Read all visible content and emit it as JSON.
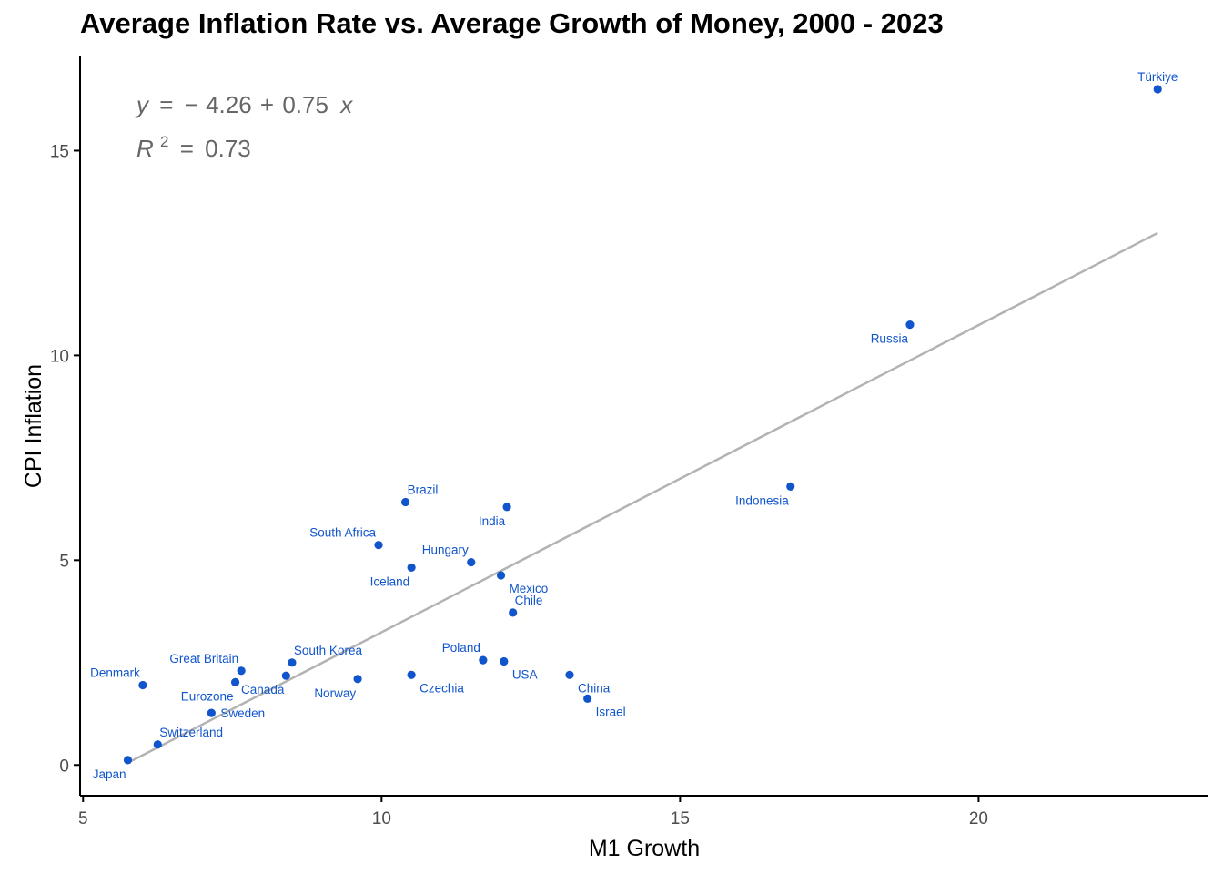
{
  "chart_data": {
    "type": "scatter",
    "title": "Average Inflation Rate vs. Average Growth of Money, 2000 - 2023",
    "xlabel": "M1 Growth",
    "ylabel": "CPI Inflation",
    "xlim": [
      4.95,
      23.85
    ],
    "ylim": [
      -0.75,
      17.3
    ],
    "xticks": [
      5,
      10,
      15,
      20
    ],
    "yticks": [
      0,
      5,
      10,
      15
    ],
    "grid": false,
    "colors": {
      "points": "#1155cc",
      "labels": "#1155cc",
      "fit_line": "#b3b3b3",
      "equation": "#666666"
    },
    "fit": {
      "intercept": -4.26,
      "slope": 0.75,
      "r_squared": 0.73,
      "x_range": [
        5.75,
        23.0
      ],
      "equation": {
        "y": "y",
        "eq": "=",
        "minus": "−",
        "intercept": "4.26",
        "plus": "+",
        "slope": "0.75",
        "x": "x",
        "r": "R",
        "sup": "2",
        "r2": "0.73"
      }
    },
    "points": [
      {
        "label": "Türkiye",
        "x": 23.0,
        "y": 16.5,
        "label_pos": "above"
      },
      {
        "label": "Russia",
        "x": 18.85,
        "y": 10.75,
        "label_pos": "below-left"
      },
      {
        "label": "Indonesia",
        "x": 16.85,
        "y": 6.8,
        "label_pos": "below-left"
      },
      {
        "label": "Brazil",
        "x": 10.4,
        "y": 6.42,
        "label_pos": "above-right"
      },
      {
        "label": "India",
        "x": 12.1,
        "y": 6.3,
        "label_pos": "below-left"
      },
      {
        "label": "South Africa",
        "x": 9.95,
        "y": 5.37,
        "label_pos": "above-left"
      },
      {
        "label": "Hungary",
        "x": 11.5,
        "y": 4.95,
        "label_pos": "above-left"
      },
      {
        "label": "Iceland",
        "x": 10.5,
        "y": 4.82,
        "label_pos": "below-left"
      },
      {
        "label": "Mexico",
        "x": 12.0,
        "y": 4.63,
        "label_pos": "below-right"
      },
      {
        "label": "Chile",
        "x": 12.2,
        "y": 3.72,
        "label_pos": "above-right"
      },
      {
        "label": "Poland",
        "x": 11.7,
        "y": 2.56,
        "label_pos": "above-left"
      },
      {
        "label": "USA",
        "x": 12.05,
        "y": 2.53,
        "label_pos": "below-right"
      },
      {
        "label": "South Korea",
        "x": 8.5,
        "y": 2.5,
        "label_pos": "above-right"
      },
      {
        "label": "Great Britain",
        "x": 7.65,
        "y": 2.3,
        "label_pos": "above-left"
      },
      {
        "label": "China",
        "x": 13.15,
        "y": 2.2,
        "label_pos": "below-right"
      },
      {
        "label": "Czechia",
        "x": 10.5,
        "y": 2.2,
        "label_pos": "below-right"
      },
      {
        "label": "Canada",
        "x": 8.4,
        "y": 2.18,
        "label_pos": "below-left"
      },
      {
        "label": "Norway",
        "x": 9.6,
        "y": 2.1,
        "label_pos": "below-left"
      },
      {
        "label": "Eurozone",
        "x": 7.55,
        "y": 2.02,
        "label_pos": "below-left"
      },
      {
        "label": "Denmark",
        "x": 6.0,
        "y": 1.95,
        "label_pos": "above-left"
      },
      {
        "label": "Israel",
        "x": 13.45,
        "y": 1.62,
        "label_pos": "below-right"
      },
      {
        "label": "Sweden",
        "x": 7.15,
        "y": 1.27,
        "label_pos": "right"
      },
      {
        "label": "Switzerland",
        "x": 6.25,
        "y": 0.5,
        "label_pos": "above-right"
      },
      {
        "label": "Japan",
        "x": 5.75,
        "y": 0.12,
        "label_pos": "below-left"
      }
    ]
  }
}
